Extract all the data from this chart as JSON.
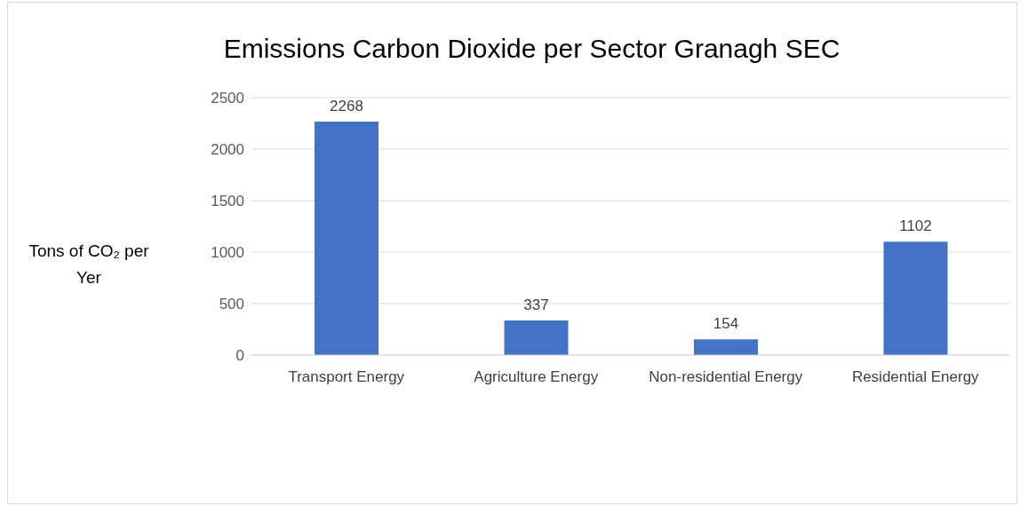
{
  "chart_data": {
    "type": "bar",
    "title": "Emissions Carbon Dioxide per Sector Granagh SEC",
    "ylabel": "Tons of CO₂ per Yer",
    "categories": [
      "Transport Energy",
      "Agriculture Energy",
      "Non-residential Energy",
      "Residential Energy"
    ],
    "values": [
      2268,
      337,
      154,
      1102
    ],
    "color": "#4472c4",
    "ylim": [
      0,
      2500
    ],
    "yticks": [
      0,
      500,
      1000,
      1500,
      2000,
      2500
    ],
    "grid": "y",
    "data_labels": true,
    "legend": false
  }
}
